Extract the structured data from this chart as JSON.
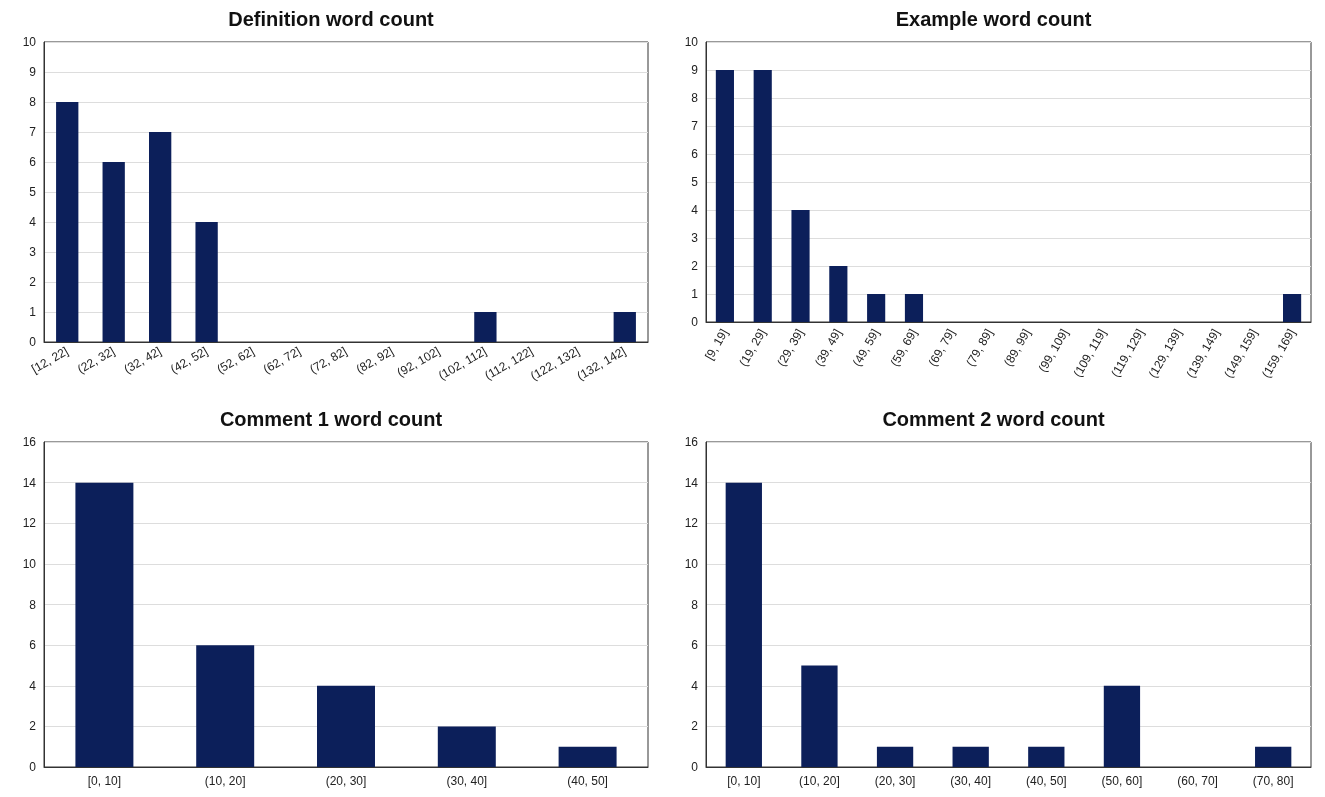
{
  "chart_data": [
    {
      "type": "bar",
      "title": "Definition word count",
      "categories": [
        "[12, 22]",
        "(22, 32]",
        "(32, 42]",
        "(42, 52]",
        "(52, 62]",
        "(62, 72]",
        "(72, 82]",
        "(82, 92]",
        "(92, 102]",
        "(102, 112]",
        "(112, 122]",
        "(122, 132]",
        "(132, 142]"
      ],
      "values": [
        8,
        6,
        7,
        4,
        0,
        0,
        0,
        0,
        0,
        1,
        0,
        0,
        1
      ],
      "color": "#0c1f5a",
      "ylim": [
        0,
        10
      ],
      "yticks": [
        0,
        1,
        2,
        3,
        4,
        5,
        6,
        7,
        8,
        9,
        10
      ],
      "grid": "y"
    },
    {
      "type": "bar",
      "title": "Example word count",
      "categories": [
        "[9, 19]",
        "(19, 29]",
        "(29, 39]",
        "(39, 49]",
        "(49, 59]",
        "(59, 69]",
        "(69, 79]",
        "(79, 89]",
        "(89, 99]",
        "(99, 109]",
        "(109, 119]",
        "(119, 129]",
        "(129, 139]",
        "(139, 149]",
        "(149, 159]",
        "(159, 169]"
      ],
      "values": [
        9,
        9,
        4,
        2,
        1,
        1,
        0,
        0,
        0,
        0,
        0,
        0,
        0,
        0,
        0,
        1
      ],
      "color": "#0c1f5a",
      "ylim": [
        0,
        10
      ],
      "yticks": [
        0,
        1,
        2,
        3,
        4,
        5,
        6,
        7,
        8,
        9,
        10
      ],
      "grid": "y"
    },
    {
      "type": "bar",
      "title": "Comment 1 word count",
      "categories": [
        "[0, 10]",
        "(10, 20]",
        "(20, 30]",
        "(30, 40]",
        "(40, 50]"
      ],
      "values": [
        14,
        6,
        4,
        2,
        1
      ],
      "color": "#0c1f5a",
      "ylim": [
        0,
        16
      ],
      "yticks": [
        0,
        2,
        4,
        6,
        8,
        10,
        12,
        14,
        16
      ],
      "grid": "y"
    },
    {
      "type": "bar",
      "title": "Comment 2 word count",
      "categories": [
        "[0, 10]",
        "(10, 20]",
        "(20, 30]",
        "(30, 40]",
        "(40, 50]",
        "(50, 60]",
        "(60, 70]",
        "(70, 80]"
      ],
      "values": [
        14,
        5,
        1,
        1,
        1,
        4,
        0,
        1
      ],
      "color": "#0c1f5a",
      "ylim": [
        0,
        16
      ],
      "yticks": [
        0,
        2,
        4,
        6,
        8,
        10,
        12,
        14,
        16
      ],
      "grid": "y"
    }
  ]
}
